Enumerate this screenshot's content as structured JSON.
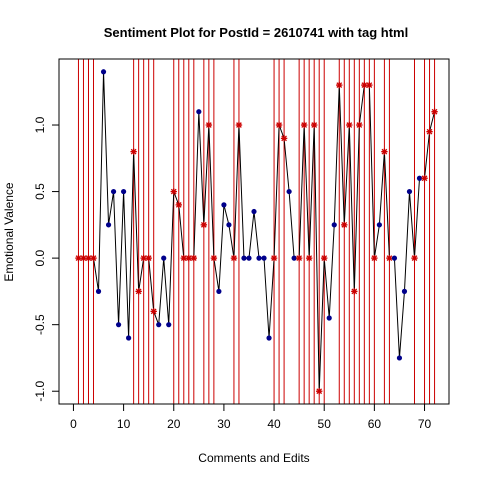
{
  "chart_data": {
    "type": "line",
    "title": "Sentiment Plot for PostId =  2610741  with tag  html",
    "xlabel": "Comments and Edits",
    "ylabel": "Emotional Valence",
    "xlim": [
      0,
      72
    ],
    "ylim": [
      -1.0,
      1.4
    ],
    "x_ticks": [
      0,
      10,
      20,
      30,
      40,
      50,
      60,
      70
    ],
    "y_ticks": [
      -1.0,
      -0.5,
      0.0,
      0.5,
      1.0
    ],
    "x_tick_labels": [
      "0",
      "10",
      "20",
      "30",
      "40",
      "50",
      "60",
      "70"
    ],
    "y_tick_labels": [
      "-1.0",
      "-0.5",
      "0.0",
      "0.5",
      "1.0"
    ],
    "grid": false,
    "colors": {
      "line": "#000000",
      "comment_point": "#00008b",
      "edit_point": "#cc0000",
      "edit_line": "#cc0000"
    },
    "edit_positions": [
      1,
      2,
      3,
      4,
      12,
      13,
      14,
      15,
      16,
      20,
      21,
      22,
      23,
      24,
      26,
      27,
      28,
      32,
      33,
      40,
      41,
      42,
      45,
      46,
      47,
      48,
      49,
      50,
      53,
      54,
      55,
      56,
      57,
      58,
      59,
      60,
      62,
      63,
      68,
      70,
      71,
      72
    ],
    "series": [
      {
        "points": [
          {
            "x": 1,
            "y": 0.0,
            "kind": "edit"
          },
          {
            "x": 2,
            "y": 0.0,
            "kind": "edit"
          },
          {
            "x": 3,
            "y": 0.0,
            "kind": "edit"
          },
          {
            "x": 4,
            "y": 0.0,
            "kind": "edit"
          },
          {
            "x": 5,
            "y": -0.25,
            "kind": "comment"
          },
          {
            "x": 6,
            "y": 1.4,
            "kind": "comment"
          },
          {
            "x": 7,
            "y": 0.25,
            "kind": "comment"
          },
          {
            "x": 8,
            "y": 0.5,
            "kind": "comment"
          },
          {
            "x": 9,
            "y": -0.5,
            "kind": "comment"
          },
          {
            "x": 10,
            "y": 0.5,
            "kind": "comment"
          },
          {
            "x": 11,
            "y": -0.6,
            "kind": "comment"
          },
          {
            "x": 12,
            "y": 0.8,
            "kind": "edit"
          },
          {
            "x": 13,
            "y": -0.25,
            "kind": "edit"
          },
          {
            "x": 14,
            "y": 0.0,
            "kind": "edit"
          },
          {
            "x": 15,
            "y": 0.0,
            "kind": "edit"
          },
          {
            "x": 16,
            "y": -0.4,
            "kind": "edit"
          },
          {
            "x": 17,
            "y": -0.5,
            "kind": "comment"
          },
          {
            "x": 18,
            "y": 0.0,
            "kind": "comment"
          },
          {
            "x": 19,
            "y": -0.5,
            "kind": "comment"
          },
          {
            "x": 20,
            "y": 0.5,
            "kind": "edit"
          },
          {
            "x": 21,
            "y": 0.4,
            "kind": "edit"
          },
          {
            "x": 22,
            "y": 0.0,
            "kind": "edit"
          },
          {
            "x": 23,
            "y": 0.0,
            "kind": "edit"
          },
          {
            "x": 24,
            "y": 0.0,
            "kind": "edit"
          },
          {
            "x": 25,
            "y": 1.1,
            "kind": "comment"
          },
          {
            "x": 26,
            "y": 0.25,
            "kind": "edit"
          },
          {
            "x": 27,
            "y": 1.0,
            "kind": "edit"
          },
          {
            "x": 28,
            "y": 0.0,
            "kind": "edit"
          },
          {
            "x": 29,
            "y": -0.25,
            "kind": "comment"
          },
          {
            "x": 30,
            "y": 0.4,
            "kind": "comment"
          },
          {
            "x": 31,
            "y": 0.25,
            "kind": "comment"
          },
          {
            "x": 32,
            "y": 0.0,
            "kind": "edit"
          },
          {
            "x": 33,
            "y": 1.0,
            "kind": "edit"
          },
          {
            "x": 34,
            "y": 0.0,
            "kind": "comment"
          },
          {
            "x": 35,
            "y": 0.0,
            "kind": "comment"
          },
          {
            "x": 36,
            "y": 0.35,
            "kind": "comment"
          },
          {
            "x": 37,
            "y": 0.0,
            "kind": "comment"
          },
          {
            "x": 38,
            "y": 0.0,
            "kind": "comment"
          },
          {
            "x": 39,
            "y": -0.6,
            "kind": "comment"
          },
          {
            "x": 40,
            "y": 0.0,
            "kind": "edit"
          },
          {
            "x": 41,
            "y": 1.0,
            "kind": "edit"
          },
          {
            "x": 42,
            "y": 0.9,
            "kind": "edit"
          },
          {
            "x": 43,
            "y": 0.5,
            "kind": "comment"
          },
          {
            "x": 44,
            "y": 0.0,
            "kind": "comment"
          },
          {
            "x": 45,
            "y": 0.0,
            "kind": "edit"
          },
          {
            "x": 46,
            "y": 1.0,
            "kind": "edit"
          },
          {
            "x": 47,
            "y": 0.0,
            "kind": "edit"
          },
          {
            "x": 48,
            "y": 1.0,
            "kind": "edit"
          },
          {
            "x": 49,
            "y": -1.0,
            "kind": "edit"
          },
          {
            "x": 50,
            "y": 0.0,
            "kind": "edit"
          },
          {
            "x": 51,
            "y": -0.45,
            "kind": "comment"
          },
          {
            "x": 52,
            "y": 0.25,
            "kind": "comment"
          },
          {
            "x": 53,
            "y": 1.3,
            "kind": "edit"
          },
          {
            "x": 54,
            "y": 0.25,
            "kind": "edit"
          },
          {
            "x": 55,
            "y": 1.0,
            "kind": "edit"
          },
          {
            "x": 56,
            "y": -0.25,
            "kind": "edit"
          },
          {
            "x": 57,
            "y": 1.0,
            "kind": "edit"
          },
          {
            "x": 58,
            "y": 1.3,
            "kind": "edit"
          },
          {
            "x": 59,
            "y": 1.3,
            "kind": "edit"
          },
          {
            "x": 60,
            "y": 0.0,
            "kind": "edit"
          },
          {
            "x": 61,
            "y": 0.25,
            "kind": "comment"
          },
          {
            "x": 62,
            "y": 0.8,
            "kind": "edit"
          },
          {
            "x": 63,
            "y": 0.0,
            "kind": "edit"
          },
          {
            "x": 64,
            "y": 0.0,
            "kind": "comment"
          },
          {
            "x": 65,
            "y": -0.75,
            "kind": "comment"
          },
          {
            "x": 66,
            "y": -0.25,
            "kind": "comment"
          },
          {
            "x": 67,
            "y": 0.5,
            "kind": "comment"
          },
          {
            "x": 68,
            "y": 0.0,
            "kind": "edit"
          },
          {
            "x": 69,
            "y": 0.6,
            "kind": "comment"
          },
          {
            "x": 70,
            "y": 0.6,
            "kind": "edit"
          },
          {
            "x": 71,
            "y": 0.95,
            "kind": "edit"
          },
          {
            "x": 72,
            "y": 1.1,
            "kind": "edit"
          }
        ]
      }
    ]
  }
}
